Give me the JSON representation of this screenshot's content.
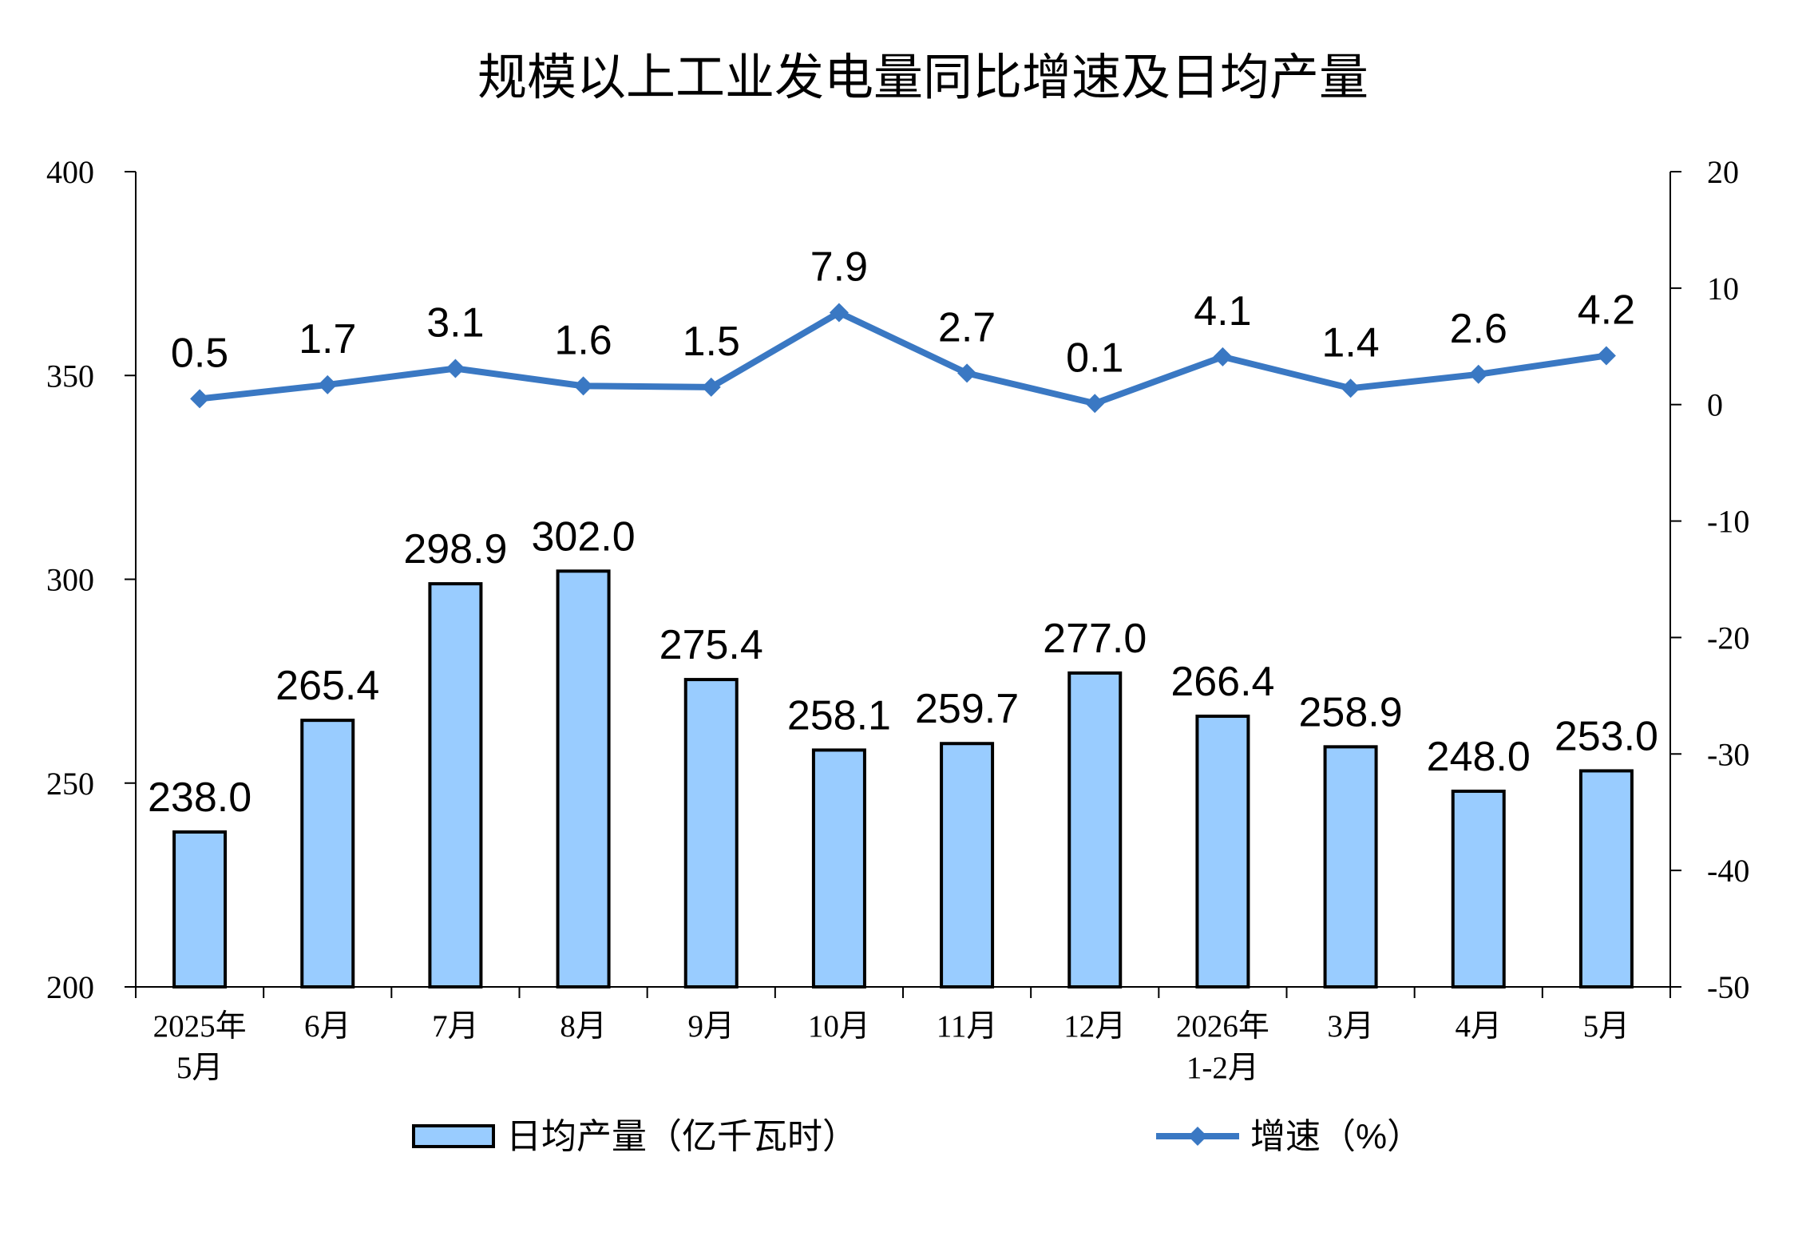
{
  "chart_data": {
    "type": "bar+line",
    "title": "规模以上工业发电量同比增速及日均产量",
    "categories": [
      [
        "2025年",
        "5月"
      ],
      [
        "6月"
      ],
      [
        "7月"
      ],
      [
        "8月"
      ],
      [
        "9月"
      ],
      [
        "10月"
      ],
      [
        "11月"
      ],
      [
        "12月"
      ],
      [
        "2026年",
        "1-2月"
      ],
      [
        "3月"
      ],
      [
        "4月"
      ],
      [
        "5月"
      ]
    ],
    "series": [
      {
        "name": "日均产量（亿千瓦时）",
        "type": "bar",
        "axis": "left",
        "color": "#99CCFF",
        "values": [
          238.0,
          265.4,
          298.9,
          302.0,
          275.4,
          258.1,
          259.7,
          277.0,
          266.4,
          258.9,
          248.0,
          253.0
        ],
        "labels": [
          "238.0",
          "265.4",
          "298.9",
          "302.0",
          "275.4",
          "258.1",
          "259.7",
          "277.0",
          "266.4",
          "258.9",
          "248.0",
          "253.0"
        ]
      },
      {
        "name": "增速（%）",
        "type": "line",
        "axis": "right",
        "color": "#3A78C3",
        "marker": "diamond",
        "values": [
          0.5,
          1.7,
          3.1,
          1.6,
          1.5,
          7.9,
          2.7,
          0.1,
          4.1,
          1.4,
          2.6,
          4.2
        ],
        "labels": [
          "0.5",
          "1.7",
          "3.1",
          "1.6",
          "1.5",
          "7.9",
          "2.7",
          "0.1",
          "4.1",
          "1.4",
          "2.6",
          "4.2"
        ]
      }
    ],
    "left_axis": {
      "min": 200,
      "max": 400,
      "ticks": [
        "200",
        "250",
        "300",
        "350",
        "400"
      ]
    },
    "right_axis": {
      "min": -50,
      "max": 20,
      "ticks": [
        "-50",
        "-40",
        "-30",
        "-20",
        "-10",
        "0",
        "10",
        "20"
      ]
    },
    "grid": false,
    "legend_position": "bottom"
  }
}
